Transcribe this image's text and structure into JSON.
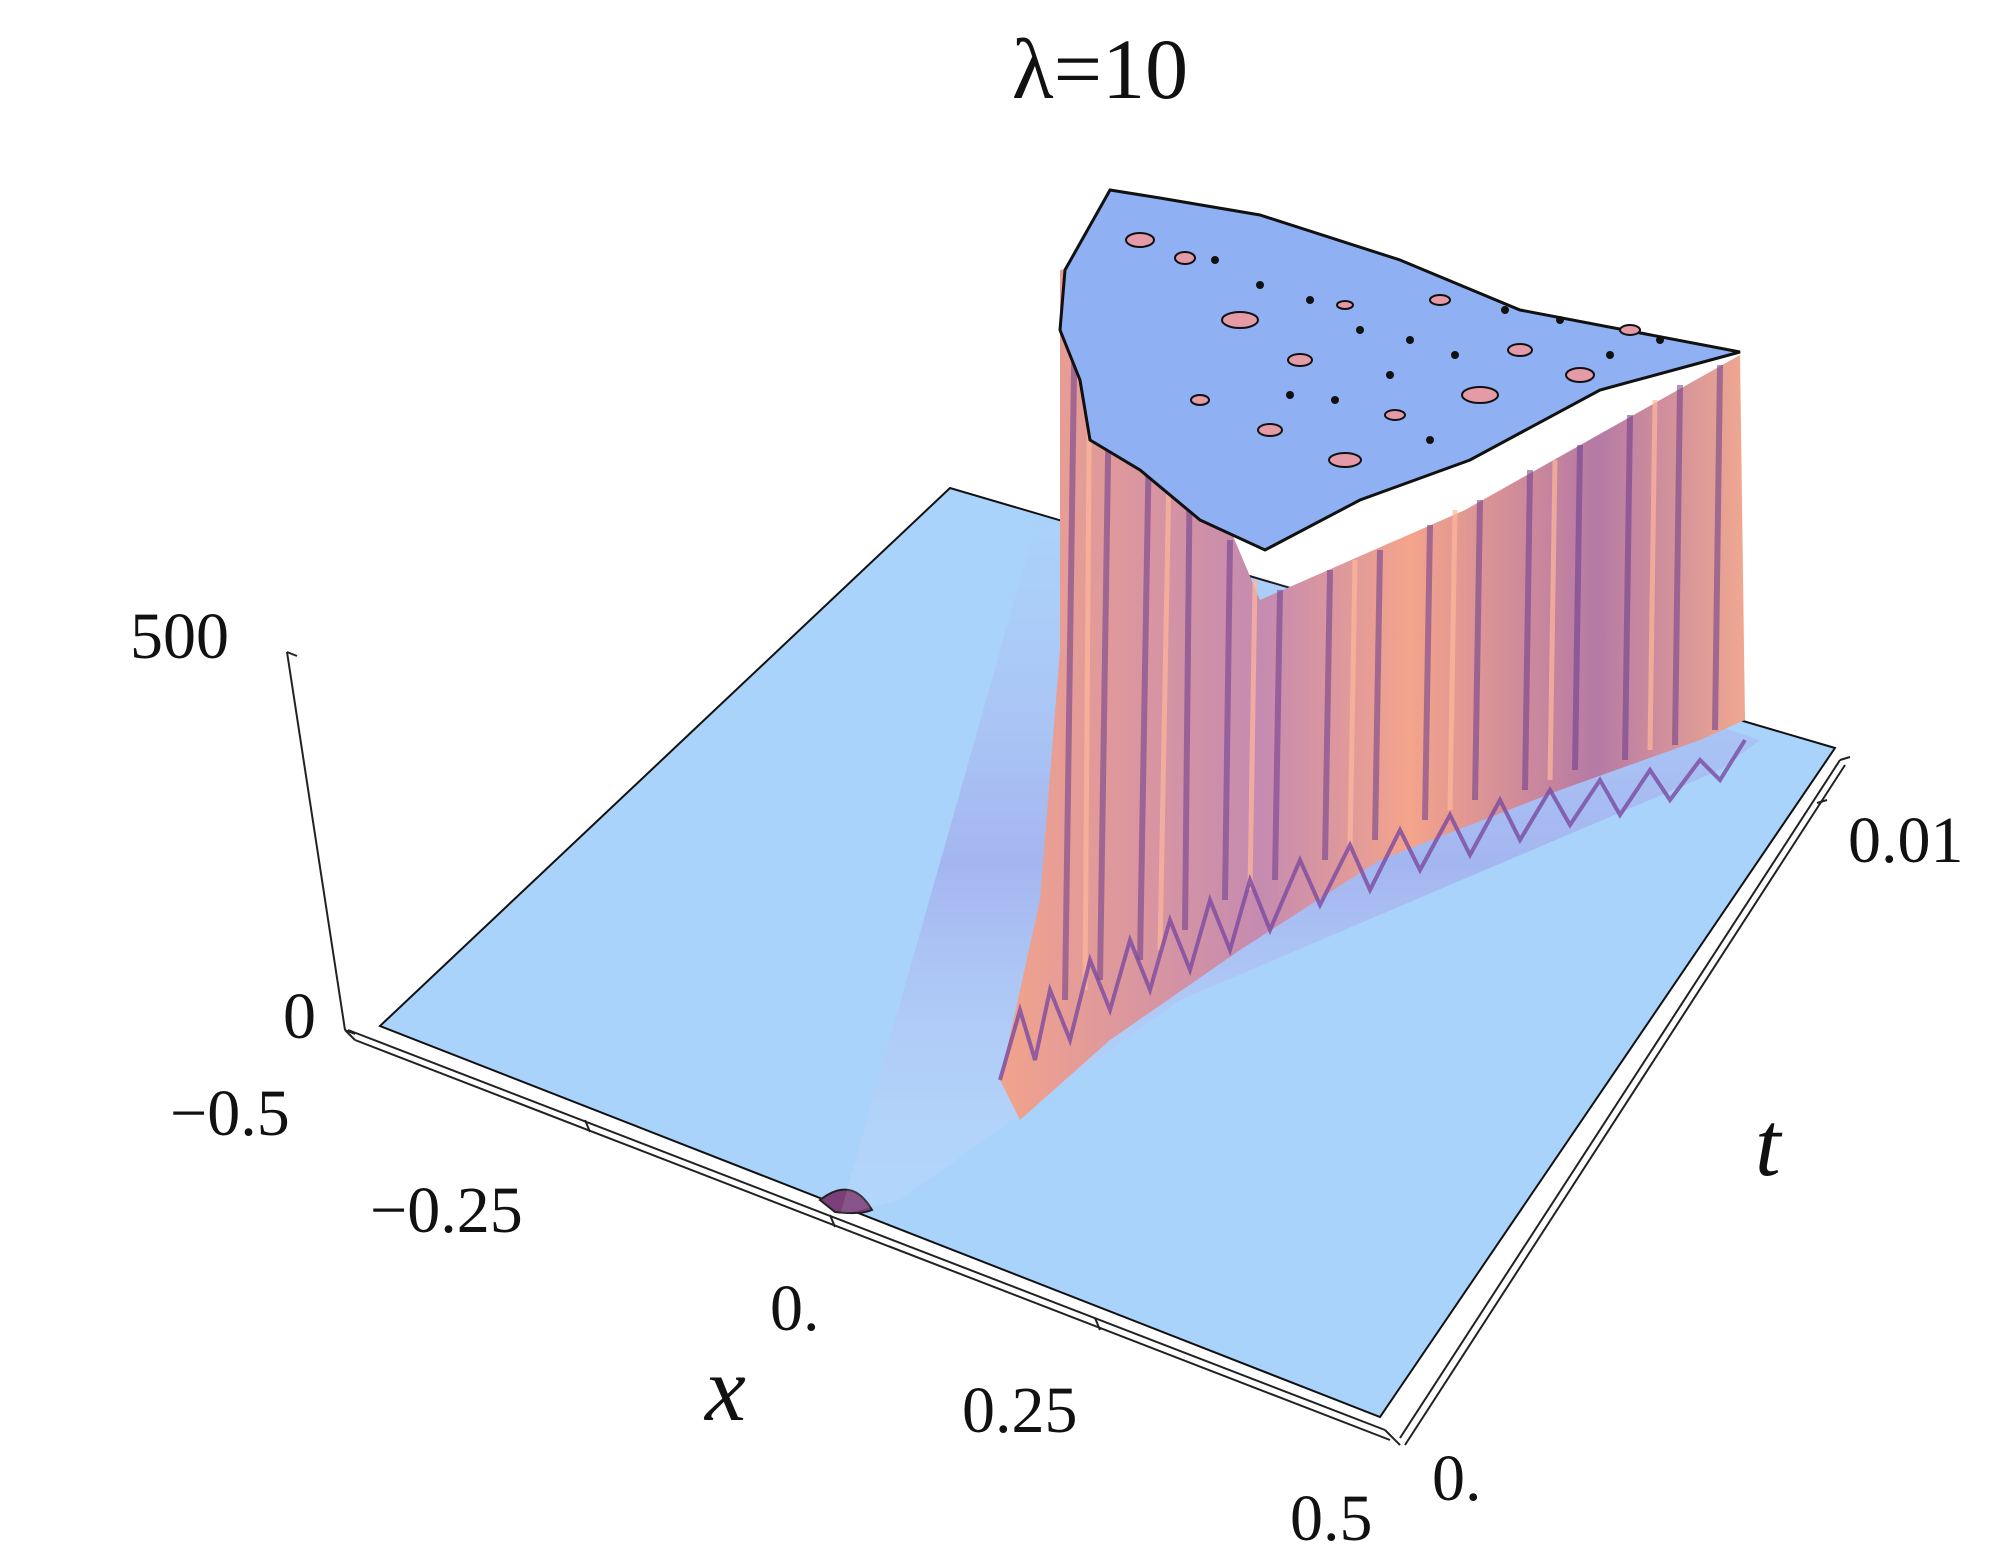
{
  "chart_data": {
    "type": "surface3d",
    "title": "λ=10",
    "xlabel": "x",
    "ylabel": "t",
    "zlabel": "",
    "x_ticks": [
      "−0.5",
      "−0.25",
      "0.",
      "0.25",
      "0.5"
    ],
    "t_ticks": [
      "0.",
      "0.01"
    ],
    "z_ticks": [
      "0",
      "500"
    ],
    "xlim": [
      -0.5,
      0.5
    ],
    "tlim": [
      0,
      0.012
    ],
    "zlim": [
      0,
      500
    ],
    "plateau_clip_z": 500,
    "initial_peak": {
      "x": 0.0,
      "t": 0.0,
      "z": 30
    },
    "front_start_x": 0.02,
    "front_end": {
      "x": -0.1,
      "t": 0.012
    },
    "colors": {
      "flat_surface": "#a9d3fb",
      "plateau_top": "#8fb0f2",
      "wall_light": "#f4a08a",
      "wall_dark": "#6a3c8e",
      "wall_mid": "#c07aa0",
      "speckle": "#e59aa8"
    }
  }
}
